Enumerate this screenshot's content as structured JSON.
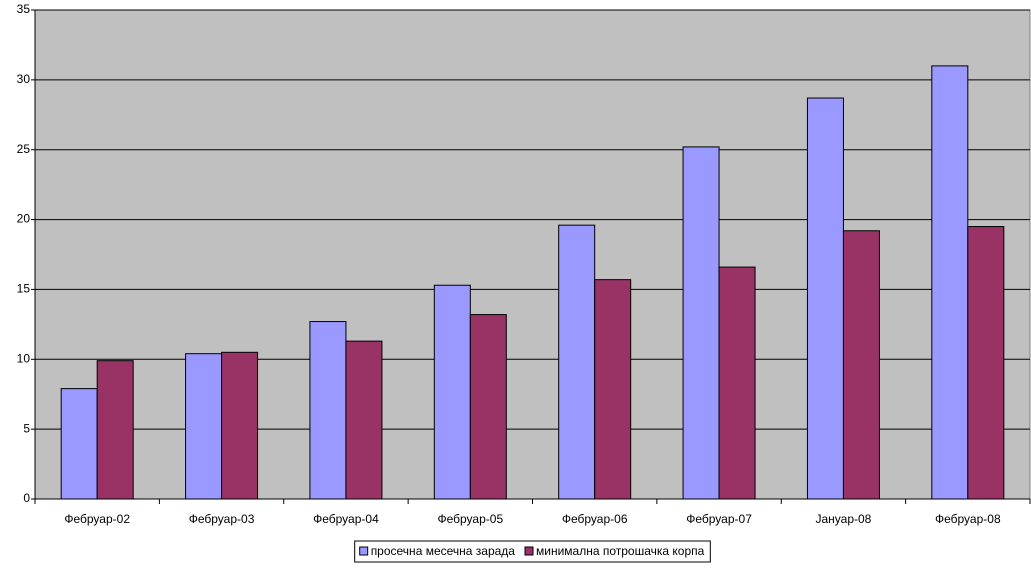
{
  "chart_data": {
    "type": "bar",
    "categories": [
      "Фебруар-02",
      "Фебруар-03",
      "Фебруар-04",
      "Фебруар-05",
      "Фебруар-06",
      "Фебруар-07",
      "Јануар-08",
      "Фебруар-08"
    ],
    "series": [
      {
        "name": "просечна месечна зарада",
        "color": "#9999ff",
        "values": [
          7.9,
          10.4,
          12.7,
          15.3,
          19.6,
          25.2,
          28.7,
          31.0
        ]
      },
      {
        "name": "минимална потрошачка корпа",
        "color": "#993366",
        "values": [
          9.9,
          10.5,
          11.3,
          13.2,
          15.7,
          16.6,
          19.2,
          19.5
        ]
      }
    ],
    "ylim": [
      0,
      35
    ],
    "yticks": [
      0,
      5,
      10,
      15,
      20,
      25,
      30,
      35
    ],
    "grid": true,
    "legend": "bottom"
  }
}
